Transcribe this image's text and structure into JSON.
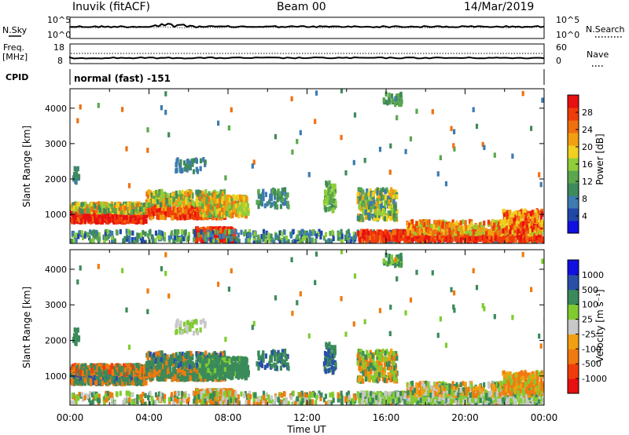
{
  "header": {
    "station": "Inuvik (fitACF)",
    "beam": "Beam 00",
    "date": "14/Mar/2019"
  },
  "nsky_panel": {
    "left_label": "N.Sky",
    "right_label": "N.Search",
    "left_ticks": [
      "10^5",
      "10^0"
    ],
    "right_ticks": [
      "10^5",
      "10^0"
    ]
  },
  "freq_panel": {
    "left_label_line1": "Freq.",
    "left_label_line2": "[MHz]",
    "left_ticks": [
      "18",
      "8"
    ],
    "right_label": "Nave",
    "right_ticks": [
      "60",
      "0"
    ]
  },
  "cpid": {
    "label": "CPID",
    "value": "normal (fast) -151"
  },
  "colors": {
    "power": [
      "#1010e0",
      "#1f47a8",
      "#3d7bb0",
      "#3f8a5b",
      "#5aa74e",
      "#8fce3a",
      "#f0d020",
      "#f0a010",
      "#f07010",
      "#f03c0a",
      "#e81010"
    ],
    "velocity": [
      "#e81010",
      "#f03c0a",
      "#f07a10",
      "#f0a010",
      "#c8c8c8",
      "#80cc30",
      "#3a8a5a",
      "#2a4fa8",
      "#1010e0"
    ]
  },
  "chart_data": [
    {
      "type": "heatmap",
      "name": "Power",
      "ylabel": "Slant Range [km]",
      "yticks": [
        1000,
        2000,
        3000,
        4000
      ],
      "ylim": [
        180,
        4550
      ],
      "xlim": [
        0,
        24
      ],
      "colorbar": {
        "label": "Power [dB]",
        "ticks": [
          "4",
          "8",
          "12",
          "16",
          "20",
          "24",
          "28"
        ],
        "range": [
          0,
          32
        ]
      }
    },
    {
      "type": "heatmap",
      "name": "Velocity",
      "ylabel": "Slant Range [km]",
      "xlabel": "Time UT",
      "xticks": [
        "00:00",
        "04:00",
        "08:00",
        "12:00",
        "16:00",
        "20:00",
        "00:00"
      ],
      "yticks": [
        1000,
        2000,
        3000,
        4000
      ],
      "ylim": [
        180,
        4550
      ],
      "xlim": [
        0,
        24
      ],
      "colorbar": {
        "label": "Velocity [m s⁻¹]",
        "ticks": [
          "-1000",
          "-500",
          "-100",
          "-25",
          "25",
          "100",
          "500",
          "1000"
        ]
      }
    }
  ]
}
